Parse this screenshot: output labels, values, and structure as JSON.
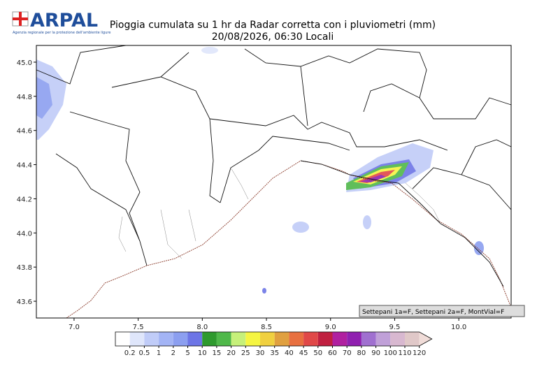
{
  "header": {
    "logo": "ARPAL",
    "logo_subtitle": "Agenzia regionale per la protezione dell'ambiente ligure",
    "title": "Pioggia cumulata su 1 hr da Radar corretta con i pluviometri (mm)",
    "subtitle": "20/08/2026, 06:30 Locali"
  },
  "map": {
    "lon_lim": [
      6.706,
      10.408
    ],
    "lat_lim": [
      43.502,
      45.098
    ],
    "lon_ticks": [
      {
        "value": 7,
        "label": "7.0"
      },
      {
        "value": 7.5,
        "label": "7.5"
      },
      {
        "value": 8,
        "label": "8.0"
      },
      {
        "value": 8.5,
        "label": "8.5"
      },
      {
        "value": 9,
        "label": "9.0"
      },
      {
        "value": 9.5,
        "label": "9.5"
      },
      {
        "value": 10,
        "label": "10.0"
      }
    ],
    "lat_ticks": [
      {
        "value": 43.6,
        "label": "43.6"
      },
      {
        "value": 43.8,
        "label": "43.8"
      },
      {
        "value": 44,
        "label": "44.0"
      },
      {
        "value": 44.2,
        "label": "44.2"
      },
      {
        "value": 44.4,
        "label": "44.4"
      },
      {
        "value": 44.6,
        "label": "44.6"
      },
      {
        "value": 44.8,
        "label": "44.8"
      },
      {
        "value": 45,
        "label": "45.0"
      }
    ],
    "annotation": "Settepani 1a=F, Settepani 2a=F, MontVial=F"
  },
  "colorbar": {
    "bounds": [
      0.2,
      0.5,
      1,
      2,
      5,
      10,
      15,
      20,
      25,
      30,
      35,
      40,
      45,
      50,
      60,
      70,
      80,
      90,
      100,
      110,
      120
    ],
    "colors": [
      "#ffffff",
      "#dfe6fb",
      "#c0ccf8",
      "#a3b4f5",
      "#8c9ff0",
      "#6d75e6",
      "#2e9a2e",
      "#4fb84a",
      "#c6f07a",
      "#f5f542",
      "#f0d040",
      "#e0a040",
      "#e87040",
      "#e04848",
      "#c02040",
      "#b020a0",
      "#9020b0",
      "#a070d0",
      "#c0a0d8",
      "#d8b8d0",
      "#e0c8c8",
      "#f0dcd8"
    ]
  }
}
